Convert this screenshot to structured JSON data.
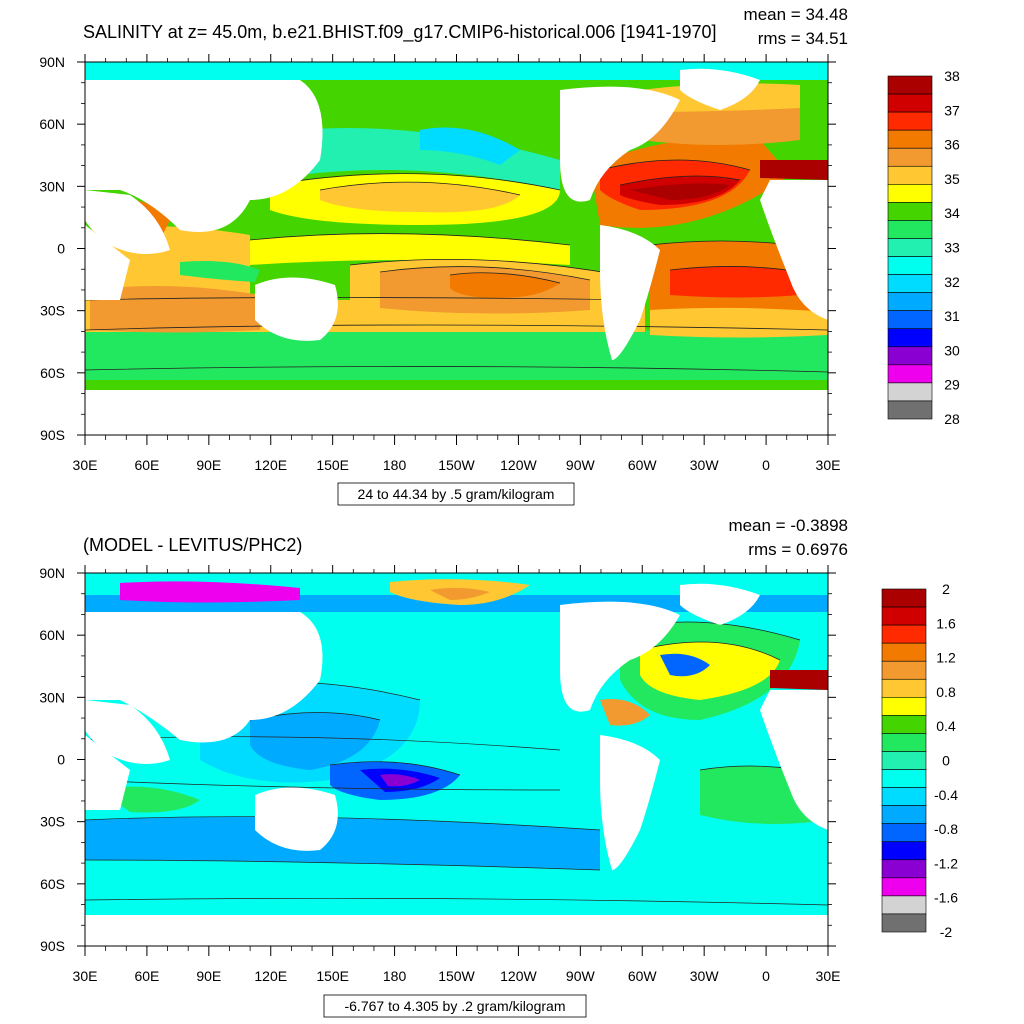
{
  "chart_data": [
    {
      "type": "heatmap",
      "title": "SALINITY at z=  45.0m, b.e21.BHIST.f09_g17.CMIP6-historical.006 [1941-1970]",
      "stats": {
        "mean": "mean = 34.48",
        "rms": "rms = 34.51"
      },
      "contour_note": "24 to 44.34 by .5 gram/kilogram",
      "x_ticks": [
        "30E",
        "60E",
        "90E",
        "120E",
        "150E",
        "180",
        "150W",
        "120W",
        "90W",
        "60W",
        "30W",
        "0",
        "30E"
      ],
      "y_ticks": [
        "90N",
        "60N",
        "30N",
        "0",
        "30S",
        "60S",
        "90S"
      ],
      "colorbar": {
        "labels": [
          "38",
          "37",
          "36",
          "35",
          "34",
          "33",
          "32",
          "31",
          "30",
          "29",
          "28"
        ],
        "colors": [
          "#aa0000",
          "#d00000",
          "#ff2a00",
          "#f27a00",
          "#f29a30",
          "#ffc832",
          "#ffff00",
          "#44d400",
          "#22e860",
          "#22f0b0",
          "#00ffee",
          "#00dcff",
          "#00aaff",
          "#0066ff",
          "#0000ff",
          "#8a00d2",
          "#ee00ee",
          "#d3d3d3",
          "#707070"
        ]
      }
    },
    {
      "type": "heatmap",
      "title": "(MODEL - LEVITUS/PHC2)",
      "stats": {
        "mean": "mean = -0.3898",
        "rms": "rms = 0.6976"
      },
      "contour_note": "-6.767 to 4.305 by .2 gram/kilogram",
      "x_ticks": [
        "30E",
        "60E",
        "90E",
        "120E",
        "150E",
        "180",
        "150W",
        "120W",
        "90W",
        "60W",
        "30W",
        "0",
        "30E"
      ],
      "y_ticks": [
        "90N",
        "60N",
        "30N",
        "0",
        "30S",
        "60S",
        "90S"
      ],
      "colorbar": {
        "labels": [
          "2",
          "1.6",
          "1.2",
          "0.8",
          "0.4",
          "0",
          "-0.4",
          "-0.8",
          "-1.2",
          "-1.6",
          "-2"
        ],
        "colors": [
          "#aa0000",
          "#d00000",
          "#ff2a00",
          "#f27a00",
          "#f29a30",
          "#ffc832",
          "#ffff00",
          "#44d400",
          "#22e860",
          "#22f0b0",
          "#00ffee",
          "#00dcff",
          "#00aaff",
          "#0066ff",
          "#0000ff",
          "#8a00d2",
          "#ee00ee",
          "#d3d3d3",
          "#707070"
        ]
      }
    }
  ],
  "palette": {
    "land": "#ffffff",
    "contour": "#222222"
  }
}
